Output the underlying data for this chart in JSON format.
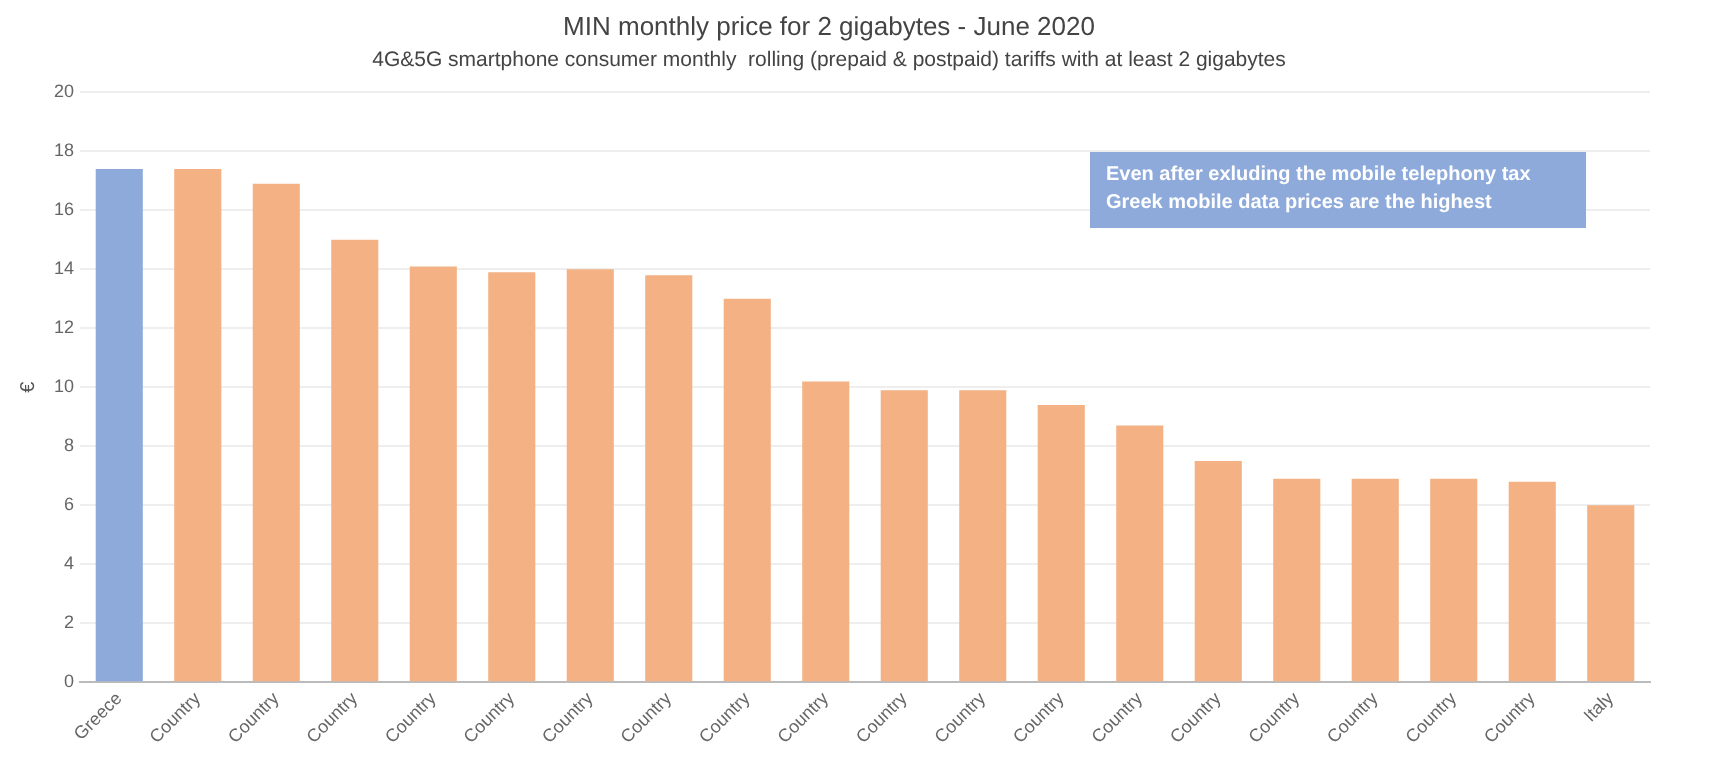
{
  "chart_data": {
    "type": "bar",
    "title": "MIN monthly price for 2 gigabytes - June 2020",
    "subtitle": "4G&5G smartphone consumer monthly  rolling (prepaid & postpaid) tariffs with at least 2 gigabytes",
    "ylabel": "€",
    "categories": [
      "Greece",
      "Country",
      "Country",
      "Country",
      "Country",
      "Country",
      "Country",
      "Country",
      "Country",
      "Country",
      "Country",
      "Country",
      "Country",
      "Country",
      "Country",
      "Country",
      "Country",
      "Country",
      "Country",
      "Italy"
    ],
    "values": [
      17.4,
      17.4,
      16.9,
      15.0,
      14.1,
      13.9,
      14.0,
      13.8,
      13.0,
      10.2,
      9.9,
      9.9,
      9.4,
      8.7,
      7.5,
      6.9,
      6.9,
      6.9,
      6.8,
      6.0
    ],
    "colors": [
      "#8eaadb",
      "#f4b183",
      "#f4b183",
      "#f4b183",
      "#f4b183",
      "#f4b183",
      "#f4b183",
      "#f4b183",
      "#f4b183",
      "#f4b183",
      "#f4b183",
      "#f4b183",
      "#f4b183",
      "#f4b183",
      "#f4b183",
      "#f4b183",
      "#f4b183",
      "#f4b183",
      "#f4b183",
      "#f4b183"
    ],
    "ylim": [
      0,
      20
    ],
    "yticks": [
      0,
      2,
      4,
      6,
      8,
      10,
      12,
      14,
      16,
      18,
      20
    ],
    "grid": "y",
    "legend": false,
    "annotations": [
      "Even after exluding the mobile telephony tax Greek mobile data prices are the highest"
    ]
  }
}
